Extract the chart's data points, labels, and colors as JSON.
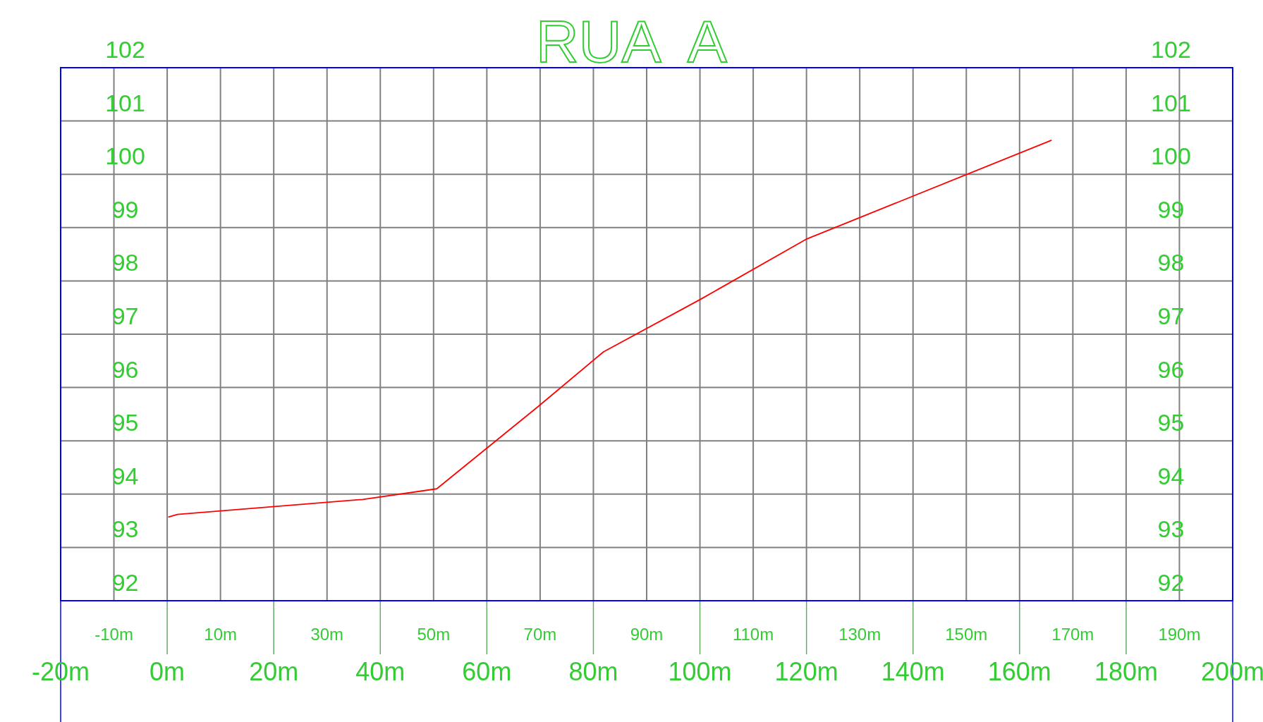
{
  "chart_data": {
    "type": "line",
    "title": "RUA  A",
    "x": [
      0.2,
      1.9,
      36.7,
      50.6,
      69.6,
      81.9,
      100.2,
      119.9,
      166
    ],
    "series": [
      {
        "color": "#ff0000",
        "values": [
          93.57,
          93.62,
          93.9,
          94.1,
          95.64,
          96.67,
          97.66,
          98.78,
          100.64
        ]
      }
    ],
    "xlim": [
      -20,
      200
    ],
    "xticks": [
      {
        "value": -20,
        "label": "-20m"
      },
      {
        "value": 0,
        "label": "0m"
      },
      {
        "value": 20,
        "label": "20m"
      },
      {
        "value": 40,
        "label": "40m"
      },
      {
        "value": 60,
        "label": "60m"
      },
      {
        "value": 80,
        "label": "80m"
      },
      {
        "value": 100,
        "label": "100m"
      },
      {
        "value": 120,
        "label": "120m"
      },
      {
        "value": 140,
        "label": "140m"
      },
      {
        "value": 160,
        "label": "160m"
      },
      {
        "value": 180,
        "label": "180m"
      },
      {
        "value": 200,
        "label": "200m"
      }
    ],
    "x2lim": [
      -20,
      200
    ],
    "x2ticks": [
      {
        "value": -10,
        "label": "-10m"
      },
      {
        "value": 10,
        "label": "10m"
      },
      {
        "value": 30,
        "label": "30m"
      },
      {
        "value": 50,
        "label": "50m"
      },
      {
        "value": 70,
        "label": "70m"
      },
      {
        "value": 90,
        "label": "90m"
      },
      {
        "value": 110,
        "label": "110m"
      },
      {
        "value": 130,
        "label": "130m"
      },
      {
        "value": 150,
        "label": "150m"
      },
      {
        "value": 170,
        "label": "170m"
      },
      {
        "value": 190,
        "label": "190m"
      }
    ],
    "ylim": [
      92,
      102
    ],
    "yticks": [
      92,
      93,
      94,
      95,
      96,
      97,
      98,
      99,
      100,
      101,
      102
    ],
    "y2lim": [
      92,
      102
    ],
    "y2ticks": [
      92,
      93,
      94,
      95,
      96,
      97,
      98,
      99,
      100,
      101,
      102
    ],
    "grid": true
  }
}
